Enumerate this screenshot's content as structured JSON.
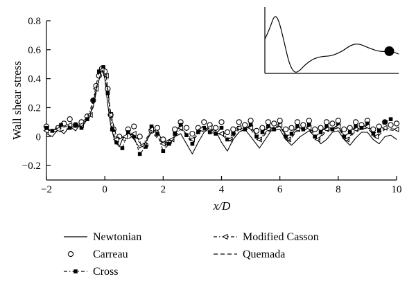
{
  "chart_data": {
    "type": "line",
    "xlabel": "x/D",
    "ylabel": "Wall shear stress",
    "xlim": [
      -2,
      10
    ],
    "ylim": [
      -0.3,
      0.8
    ],
    "xticks": [
      -2,
      0,
      2,
      4,
      6,
      8,
      10
    ],
    "xtick_labels": [
      "−2",
      "0",
      "2",
      "4",
      "6",
      "8",
      "10"
    ],
    "yticks": [
      -0.2,
      0,
      0.2,
      0.4,
      0.6,
      0.8
    ],
    "ytick_labels": [
      "−0.2",
      "0",
      "0.2",
      "0.4",
      "0.6",
      "0.8"
    ],
    "grid": false,
    "legend_position": "bottom",
    "series": [
      {
        "name": "Newtonian",
        "style": "solid",
        "marker": "none",
        "points": [
          [
            -2,
            0.02
          ],
          [
            -1.8,
            0.0
          ],
          [
            -1.6,
            0.05
          ],
          [
            -1.4,
            0.02
          ],
          [
            -1.2,
            0.07
          ],
          [
            -1.0,
            0.04
          ],
          [
            -0.8,
            0.1
          ],
          [
            -0.6,
            0.13
          ],
          [
            -0.4,
            0.2
          ],
          [
            -0.25,
            0.35
          ],
          [
            -0.1,
            0.47
          ],
          [
            0.0,
            0.4
          ],
          [
            0.1,
            0.22
          ],
          [
            0.2,
            0.08
          ],
          [
            0.35,
            -0.04
          ],
          [
            0.5,
            -0.07
          ],
          [
            0.6,
            -0.02
          ],
          [
            0.8,
            0.03
          ],
          [
            1.0,
            -0.02
          ],
          [
            1.2,
            -0.08
          ],
          [
            1.4,
            -0.04
          ],
          [
            1.6,
            0.03
          ],
          [
            1.8,
            0.05
          ],
          [
            2.0,
            -0.05
          ],
          [
            2.2,
            -0.06
          ],
          [
            2.4,
            0.0
          ],
          [
            2.6,
            0.02
          ],
          [
            2.8,
            -0.05
          ],
          [
            3.0,
            -0.12
          ],
          [
            3.2,
            -0.04
          ],
          [
            3.4,
            0.03
          ],
          [
            3.6,
            0.06
          ],
          [
            3.8,
            0.04
          ],
          [
            4.0,
            -0.04
          ],
          [
            4.2,
            -0.1
          ],
          [
            4.4,
            -0.02
          ],
          [
            4.6,
            0.03
          ],
          [
            4.8,
            0.05
          ],
          [
            5.0,
            0.0
          ],
          [
            5.3,
            -0.08
          ],
          [
            5.5,
            -0.02
          ],
          [
            5.7,
            0.04
          ],
          [
            6.0,
            0.05
          ],
          [
            6.2,
            -0.02
          ],
          [
            6.4,
            -0.06
          ],
          [
            6.7,
            0.0
          ],
          [
            7.0,
            0.04
          ],
          [
            7.2,
            0.0
          ],
          [
            7.4,
            -0.05
          ],
          [
            7.6,
            -0.02
          ],
          [
            7.8,
            0.03
          ],
          [
            8.0,
            0.04
          ],
          [
            8.2,
            -0.02
          ],
          [
            8.4,
            -0.06
          ],
          [
            8.6,
            -0.01
          ],
          [
            8.8,
            0.03
          ],
          [
            9.0,
            0.03
          ],
          [
            9.2,
            -0.02
          ],
          [
            9.4,
            -0.05
          ],
          [
            9.6,
            0.0
          ],
          [
            9.8,
            0.01
          ],
          [
            10.0,
            -0.02
          ]
        ]
      },
      {
        "name": "Carreau",
        "style": "none",
        "marker": "open-circle",
        "points": [
          [
            -2,
            0.07
          ],
          [
            -1.6,
            0.06
          ],
          [
            -1.4,
            0.09
          ],
          [
            -1.2,
            0.12
          ],
          [
            -1.0,
            0.08
          ],
          [
            -0.8,
            0.1
          ],
          [
            -0.6,
            0.14
          ],
          [
            -0.4,
            0.25
          ],
          [
            -0.3,
            0.35
          ],
          [
            -0.2,
            0.42
          ],
          [
            -0.1,
            0.47
          ],
          [
            0.0,
            0.45
          ],
          [
            0.1,
            0.33
          ],
          [
            0.2,
            0.15
          ],
          [
            0.3,
            0.05
          ],
          [
            0.5,
            0.0
          ],
          [
            0.8,
            0.05
          ],
          [
            1.0,
            0.07
          ],
          [
            1.2,
            0.0
          ],
          [
            1.4,
            -0.06
          ],
          [
            1.6,
            0.04
          ],
          [
            1.8,
            0.06
          ],
          [
            2.0,
            -0.02
          ],
          [
            2.2,
            -0.04
          ],
          [
            2.4,
            0.05
          ],
          [
            2.6,
            0.1
          ],
          [
            2.8,
            0.06
          ],
          [
            3.0,
            0.02
          ],
          [
            3.2,
            0.06
          ],
          [
            3.4,
            0.1
          ],
          [
            3.6,
            0.08
          ],
          [
            3.8,
            0.06
          ],
          [
            4.0,
            0.1
          ],
          [
            4.2,
            0.03
          ],
          [
            4.4,
            0.05
          ],
          [
            4.6,
            0.1
          ],
          [
            4.8,
            0.08
          ],
          [
            5.0,
            0.11
          ],
          [
            5.2,
            0.04
          ],
          [
            5.4,
            0.06
          ],
          [
            5.6,
            0.1
          ],
          [
            5.8,
            0.09
          ],
          [
            6.0,
            0.11
          ],
          [
            6.2,
            0.05
          ],
          [
            6.4,
            0.06
          ],
          [
            6.6,
            0.1
          ],
          [
            6.8,
            0.08
          ],
          [
            7.0,
            0.11
          ],
          [
            7.2,
            0.05
          ],
          [
            7.4,
            0.06
          ],
          [
            7.6,
            0.1
          ],
          [
            7.8,
            0.09
          ],
          [
            8.0,
            0.11
          ],
          [
            8.2,
            0.05
          ],
          [
            8.4,
            0.06
          ],
          [
            8.6,
            0.1
          ],
          [
            8.8,
            0.08
          ],
          [
            9.0,
            0.11
          ],
          [
            9.2,
            0.05
          ],
          [
            9.4,
            0.07
          ],
          [
            9.6,
            0.1
          ],
          [
            9.8,
            0.08
          ],
          [
            10.0,
            0.09
          ]
        ]
      },
      {
        "name": "Cross",
        "style": "dash-dot",
        "marker": "filled-square",
        "points": [
          [
            -2,
            0.06
          ],
          [
            -1.8,
            0.04
          ],
          [
            -1.5,
            0.08
          ],
          [
            -1.2,
            0.06
          ],
          [
            -1.0,
            0.08
          ],
          [
            -0.8,
            0.06
          ],
          [
            -0.6,
            0.12
          ],
          [
            -0.4,
            0.25
          ],
          [
            -0.2,
            0.45
          ],
          [
            -0.05,
            0.48
          ],
          [
            0.1,
            0.3
          ],
          [
            0.25,
            0.05
          ],
          [
            0.4,
            -0.04
          ],
          [
            0.6,
            -0.08
          ],
          [
            0.8,
            0.03
          ],
          [
            1.0,
            0.0
          ],
          [
            1.2,
            -0.12
          ],
          [
            1.4,
            -0.07
          ],
          [
            1.6,
            0.07
          ],
          [
            1.8,
            0.02
          ],
          [
            2.0,
            -0.1
          ],
          [
            2.2,
            -0.05
          ],
          [
            2.4,
            0.02
          ],
          [
            2.6,
            0.08
          ],
          [
            2.8,
            0.01
          ],
          [
            3.0,
            -0.05
          ],
          [
            3.2,
            0.03
          ],
          [
            3.4,
            0.06
          ],
          [
            3.6,
            0.03
          ],
          [
            3.8,
            0.02
          ],
          [
            4.0,
            0.06
          ],
          [
            4.2,
            -0.02
          ],
          [
            4.4,
            0.02
          ],
          [
            4.6,
            0.06
          ],
          [
            4.8,
            0.05
          ],
          [
            5.0,
            0.08
          ],
          [
            5.2,
            0.0
          ],
          [
            5.4,
            0.03
          ],
          [
            5.6,
            0.07
          ],
          [
            5.8,
            0.05
          ],
          [
            6.0,
            0.08
          ],
          [
            6.2,
            0.0
          ],
          [
            6.4,
            0.02
          ],
          [
            6.6,
            0.07
          ],
          [
            6.8,
            0.05
          ],
          [
            7.0,
            0.08
          ],
          [
            7.2,
            0.0
          ],
          [
            7.4,
            0.03
          ],
          [
            7.6,
            0.07
          ],
          [
            7.8,
            0.05
          ],
          [
            8.0,
            0.08
          ],
          [
            8.2,
            0.0
          ],
          [
            8.4,
            0.03
          ],
          [
            8.6,
            0.07
          ],
          [
            8.8,
            0.06
          ],
          [
            9.0,
            0.09
          ],
          [
            9.2,
            0.02
          ],
          [
            9.4,
            0.04
          ],
          [
            9.6,
            0.1
          ],
          [
            9.8,
            0.12
          ]
        ]
      },
      {
        "name": "Modified Casson",
        "style": "dash-dot",
        "marker": "open-left-triangle",
        "points": [
          [
            -2,
            0.04
          ],
          [
            -1.6,
            0.05
          ],
          [
            -1.2,
            0.08
          ],
          [
            -0.8,
            0.08
          ],
          [
            -0.5,
            0.15
          ],
          [
            -0.3,
            0.33
          ],
          [
            -0.1,
            0.46
          ],
          [
            0.05,
            0.42
          ],
          [
            0.2,
            0.15
          ],
          [
            0.4,
            -0.02
          ],
          [
            0.7,
            0.0
          ],
          [
            1.0,
            0.02
          ],
          [
            1.3,
            -0.06
          ],
          [
            1.6,
            0.05
          ],
          [
            2.0,
            -0.05
          ],
          [
            2.3,
            -0.02
          ],
          [
            2.6,
            0.06
          ],
          [
            3.0,
            -0.02
          ],
          [
            3.3,
            0.05
          ],
          [
            3.6,
            0.06
          ],
          [
            4.0,
            0.02
          ],
          [
            4.3,
            -0.02
          ],
          [
            4.6,
            0.06
          ],
          [
            5.0,
            0.06
          ],
          [
            5.3,
            -0.02
          ],
          [
            5.6,
            0.05
          ],
          [
            6.0,
            0.08
          ],
          [
            6.3,
            -0.02
          ],
          [
            6.6,
            0.05
          ],
          [
            7.0,
            0.06
          ],
          [
            7.3,
            -0.02
          ],
          [
            7.6,
            0.05
          ],
          [
            8.0,
            0.07
          ],
          [
            8.3,
            -0.02
          ],
          [
            8.6,
            0.05
          ],
          [
            9.0,
            0.07
          ],
          [
            9.3,
            0.0
          ],
          [
            9.6,
            0.06
          ],
          [
            10.0,
            0.05
          ]
        ]
      },
      {
        "name": "Quemada",
        "style": "dashed",
        "marker": "none",
        "points": [
          [
            -2,
            0.05
          ],
          [
            -1.6,
            0.03
          ],
          [
            -1.2,
            0.06
          ],
          [
            -0.8,
            0.07
          ],
          [
            -0.5,
            0.14
          ],
          [
            -0.3,
            0.32
          ],
          [
            -0.1,
            0.46
          ],
          [
            0.05,
            0.42
          ],
          [
            0.2,
            0.16
          ],
          [
            0.4,
            0.0
          ],
          [
            0.7,
            -0.03
          ],
          [
            1.0,
            0.01
          ],
          [
            1.3,
            -0.07
          ],
          [
            1.6,
            0.03
          ],
          [
            2.0,
            -0.05
          ],
          [
            2.3,
            -0.03
          ],
          [
            2.6,
            0.05
          ],
          [
            3.0,
            -0.03
          ],
          [
            3.3,
            0.04
          ],
          [
            3.6,
            0.05
          ],
          [
            4.0,
            0.01
          ],
          [
            4.3,
            -0.03
          ],
          [
            4.6,
            0.05
          ],
          [
            5.0,
            0.05
          ],
          [
            5.3,
            -0.03
          ],
          [
            5.6,
            0.04
          ],
          [
            6.0,
            0.07
          ],
          [
            6.3,
            -0.03
          ],
          [
            6.6,
            0.04
          ],
          [
            7.0,
            0.05
          ],
          [
            7.3,
            -0.03
          ],
          [
            7.6,
            0.04
          ],
          [
            8.0,
            0.06
          ],
          [
            8.3,
            -0.03
          ],
          [
            8.6,
            0.04
          ],
          [
            9.0,
            0.06
          ],
          [
            9.3,
            -0.01
          ],
          [
            9.6,
            0.05
          ],
          [
            10.0,
            0.04
          ]
        ]
      }
    ],
    "inset": {
      "curve": [
        [
          0,
          0.55
        ],
        [
          0.04,
          0.75
        ],
        [
          0.07,
          0.95
        ],
        [
          0.1,
          0.9
        ],
        [
          0.14,
          0.55
        ],
        [
          0.18,
          0.15
        ],
        [
          0.22,
          -0.02
        ],
        [
          0.26,
          0.02
        ],
        [
          0.3,
          0.12
        ],
        [
          0.36,
          0.22
        ],
        [
          0.42,
          0.26
        ],
        [
          0.5,
          0.27
        ],
        [
          0.58,
          0.35
        ],
        [
          0.64,
          0.45
        ],
        [
          0.7,
          0.48
        ],
        [
          0.78,
          0.4
        ],
        [
          0.86,
          0.34
        ],
        [
          0.94,
          0.35
        ],
        [
          0.98,
          0.32
        ],
        [
          1.0,
          0.3
        ]
      ],
      "marker_at": [
        0.93,
        0.35
      ]
    }
  }
}
